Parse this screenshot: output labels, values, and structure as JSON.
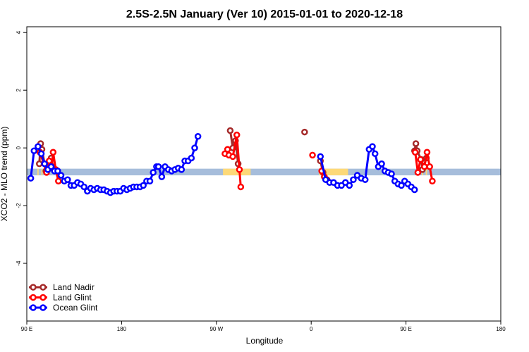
{
  "chart_data": {
    "type": "line",
    "title": "2.5S-2.5N January (Ver 10)   2015-01-01 to 2020-12-18",
    "xlabel": "Longitude",
    "ylabel": "XCO2 - MLO trend (ppm)",
    "xlim": [
      90,
      450
    ],
    "ylim": [
      -6,
      4.2
    ],
    "x_ticks": [
      {
        "value": 90,
        "label": "90 E"
      },
      {
        "value": 162,
        "label": "180"
      },
      {
        "value": 234,
        "label": "90 W"
      },
      {
        "value": 306,
        "label": "0"
      },
      {
        "value": 378,
        "label": "90 E"
      },
      {
        "value": 450,
        "label": "180"
      }
    ],
    "y_ticks": [
      {
        "value": 4,
        "label": "4"
      },
      {
        "value": 2,
        "label": "2"
      },
      {
        "value": 0,
        "label": "0"
      },
      {
        "value": -2,
        "label": "-2"
      },
      {
        "value": -4,
        "label": "-4"
      }
    ],
    "grid": false,
    "legend_position": "bottom-left",
    "surface_band": {
      "y_range": [
        -0.95,
        -0.72
      ],
      "ocean_color": "#a6bddb",
      "land_color": "#fdd978",
      "land_x_ranges": [
        [
          98,
          99
        ],
        [
          101,
          102
        ],
        [
          104,
          105
        ],
        [
          239,
          260
        ],
        [
          312,
          334
        ],
        [
          387,
          388
        ],
        [
          390,
          391
        ],
        [
          393,
          394
        ]
      ]
    },
    "series": [
      {
        "name": "Land Nadir",
        "color": "#a52a2a",
        "segments": [
          [
            [
              99.5,
              -0.55
            ],
            [
              100.5,
              0.15
            ],
            [
              101.5,
              -0.05
            ],
            [
              104.5,
              -0.8
            ],
            [
              105.5,
              -0.55
            ],
            [
              108.5,
              -0.35
            ],
            [
              110.5,
              -0.75
            ]
          ],
          [
            [
              244.5,
              0.6
            ],
            [
              246.5,
              0.0
            ],
            [
              248.5,
              0.25
            ],
            [
              250.5,
              -0.55
            ]
          ],
          [
            [
              301.0,
              0.55
            ]
          ],
          [
            [
              313.0,
              -0.45
            ],
            [
              315.0,
              -0.85
            ],
            [
              318.0,
              -1.1
            ]
          ],
          [
            [
              384.5,
              -0.1
            ],
            [
              385.5,
              0.15
            ],
            [
              386.5,
              -0.1
            ],
            [
              389.5,
              -0.4
            ],
            [
              390.5,
              -0.75
            ],
            [
              393.5,
              -0.35
            ]
          ]
        ]
      },
      {
        "name": "Land Glint",
        "color": "#ff0000",
        "segments": [
          [
            [
              100.0,
              -0.15
            ],
            [
              105.0,
              -0.85
            ],
            [
              107.0,
              -0.45
            ],
            [
              109.0,
              -0.65
            ],
            [
              110.0,
              -0.15
            ],
            [
              112.0,
              -0.75
            ],
            [
              114.0,
              -1.15
            ]
          ],
          [
            [
              240.5,
              -0.2
            ],
            [
              242.5,
              -0.05
            ],
            [
              243.5,
              -0.25
            ],
            [
              246.5,
              -0.3
            ],
            [
              249.5,
              0.45
            ],
            [
              251.5,
              -0.75
            ],
            [
              252.5,
              -1.35
            ]
          ],
          [
            [
              307.0,
              -0.25
            ]
          ],
          [
            [
              314.0,
              -0.8
            ],
            [
              316.0,
              -1.0
            ]
          ],
          [
            [
              385.0,
              -0.15
            ],
            [
              387.0,
              -0.85
            ],
            [
              389.0,
              -0.4
            ],
            [
              392.0,
              -0.65
            ],
            [
              394.0,
              -0.15
            ],
            [
              396.0,
              -0.65
            ],
            [
              398.0,
              -1.15
            ]
          ]
        ]
      },
      {
        "name": "Ocean Glint",
        "color": "#0000ff",
        "segments": [
          [
            [
              93.0,
              -1.05
            ],
            [
              95.5,
              -0.1
            ],
            [
              98.5,
              0.05
            ],
            [
              101.0,
              -0.2
            ],
            [
              103.5,
              -0.55
            ],
            [
              106.0,
              -0.75
            ],
            [
              108.5,
              -0.65
            ],
            [
              111.0,
              -0.8
            ],
            [
              113.5,
              -0.8
            ],
            [
              116.0,
              -0.95
            ],
            [
              118.5,
              -1.15
            ],
            [
              121.0,
              -1.1
            ],
            [
              123.5,
              -1.3
            ],
            [
              126.0,
              -1.3
            ],
            [
              128.5,
              -1.2
            ],
            [
              131.0,
              -1.25
            ],
            [
              133.5,
              -1.35
            ],
            [
              136.0,
              -1.5
            ],
            [
              138.5,
              -1.4
            ],
            [
              141.0,
              -1.45
            ],
            [
              143.5,
              -1.4
            ],
            [
              146.0,
              -1.45
            ],
            [
              148.5,
              -1.45
            ],
            [
              151.0,
              -1.5
            ],
            [
              153.5,
              -1.55
            ],
            [
              156.0,
              -1.5
            ],
            [
              158.5,
              -1.5
            ],
            [
              161.0,
              -1.5
            ],
            [
              163.5,
              -1.4
            ],
            [
              166.0,
              -1.45
            ],
            [
              168.5,
              -1.4
            ],
            [
              171.0,
              -1.35
            ],
            [
              173.5,
              -1.35
            ],
            [
              176.0,
              -1.35
            ],
            [
              178.5,
              -1.3
            ],
            [
              181.0,
              -1.15
            ],
            [
              183.5,
              -1.15
            ],
            [
              186.0,
              -0.85
            ],
            [
              188.5,
              -0.65
            ],
            [
              190.0,
              -0.65
            ],
            [
              192.5,
              -1.0
            ],
            [
              195.0,
              -0.65
            ],
            [
              197.5,
              -0.75
            ],
            [
              200.0,
              -0.8
            ],
            [
              202.5,
              -0.75
            ],
            [
              205.0,
              -0.7
            ],
            [
              207.5,
              -0.75
            ],
            [
              210.0,
              -0.45
            ],
            [
              212.5,
              -0.45
            ],
            [
              215.0,
              -0.35
            ],
            [
              217.5,
              0.0
            ],
            [
              220.0,
              0.4
            ]
          ],
          [
            [
              313.0,
              -0.3
            ],
            [
              317.0,
              -1.1
            ],
            [
              320.0,
              -1.2
            ],
            [
              323.0,
              -1.2
            ],
            [
              326.0,
              -1.3
            ],
            [
              329.0,
              -1.3
            ],
            [
              332.0,
              -1.2
            ],
            [
              335.0,
              -1.3
            ],
            [
              338.0,
              -1.1
            ],
            [
              341.0,
              -0.95
            ],
            [
              344.0,
              -1.05
            ],
            [
              347.0,
              -1.1
            ],
            [
              350.0,
              -0.05
            ],
            [
              352.5,
              0.05
            ],
            [
              354.5,
              -0.2
            ],
            [
              357.0,
              -0.65
            ],
            [
              359.5,
              -0.55
            ],
            [
              362.0,
              -0.8
            ],
            [
              364.5,
              -0.85
            ],
            [
              367.0,
              -0.9
            ],
            [
              369.5,
              -1.15
            ],
            [
              372.0,
              -1.25
            ],
            [
              374.5,
              -1.3
            ],
            [
              377.0,
              -1.15
            ],
            [
              379.5,
              -1.25
            ],
            [
              382.0,
              -1.35
            ],
            [
              384.5,
              -1.45
            ]
          ]
        ]
      }
    ]
  }
}
